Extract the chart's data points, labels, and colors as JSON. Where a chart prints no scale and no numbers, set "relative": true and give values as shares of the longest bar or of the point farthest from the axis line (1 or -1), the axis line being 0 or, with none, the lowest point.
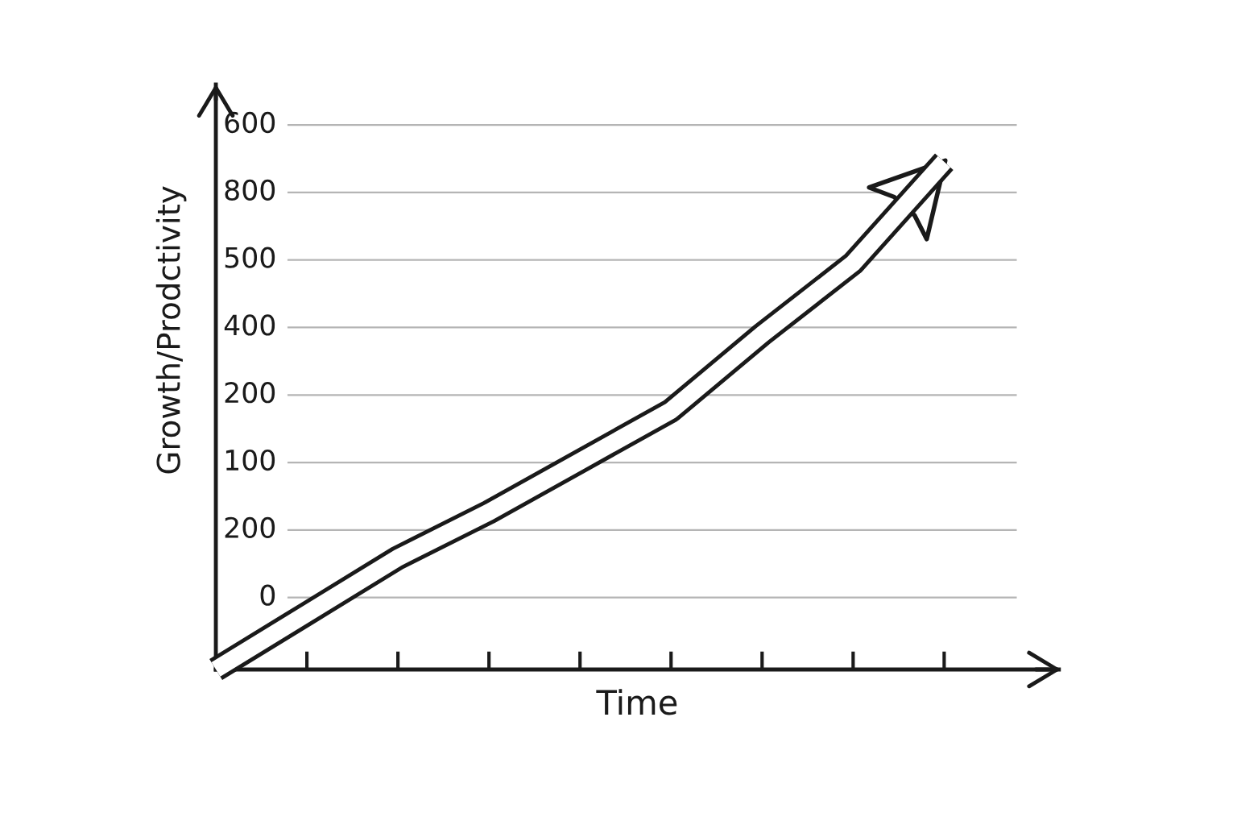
{
  "chart_data": {
    "type": "line",
    "relative": true,
    "xlabel": "Time",
    "ylabel": "Growth/Prodctivity",
    "categories": [
      null,
      null,
      null,
      null,
      null,
      null,
      null,
      null,
      null
    ],
    "series": [
      {
        "color": "#1a1a1a",
        "values": [
          0,
          0.11,
          0.22,
          0.31,
          0.41,
          0.51,
          0.66,
          0.8,
          1
        ]
      }
    ],
    "annotations": [
      "600",
      "800",
      "500",
      "400",
      "200",
      "100",
      "200",
      "0"
    ],
    "grid": "y",
    "marker": "none",
    "line_style": "solid"
  }
}
